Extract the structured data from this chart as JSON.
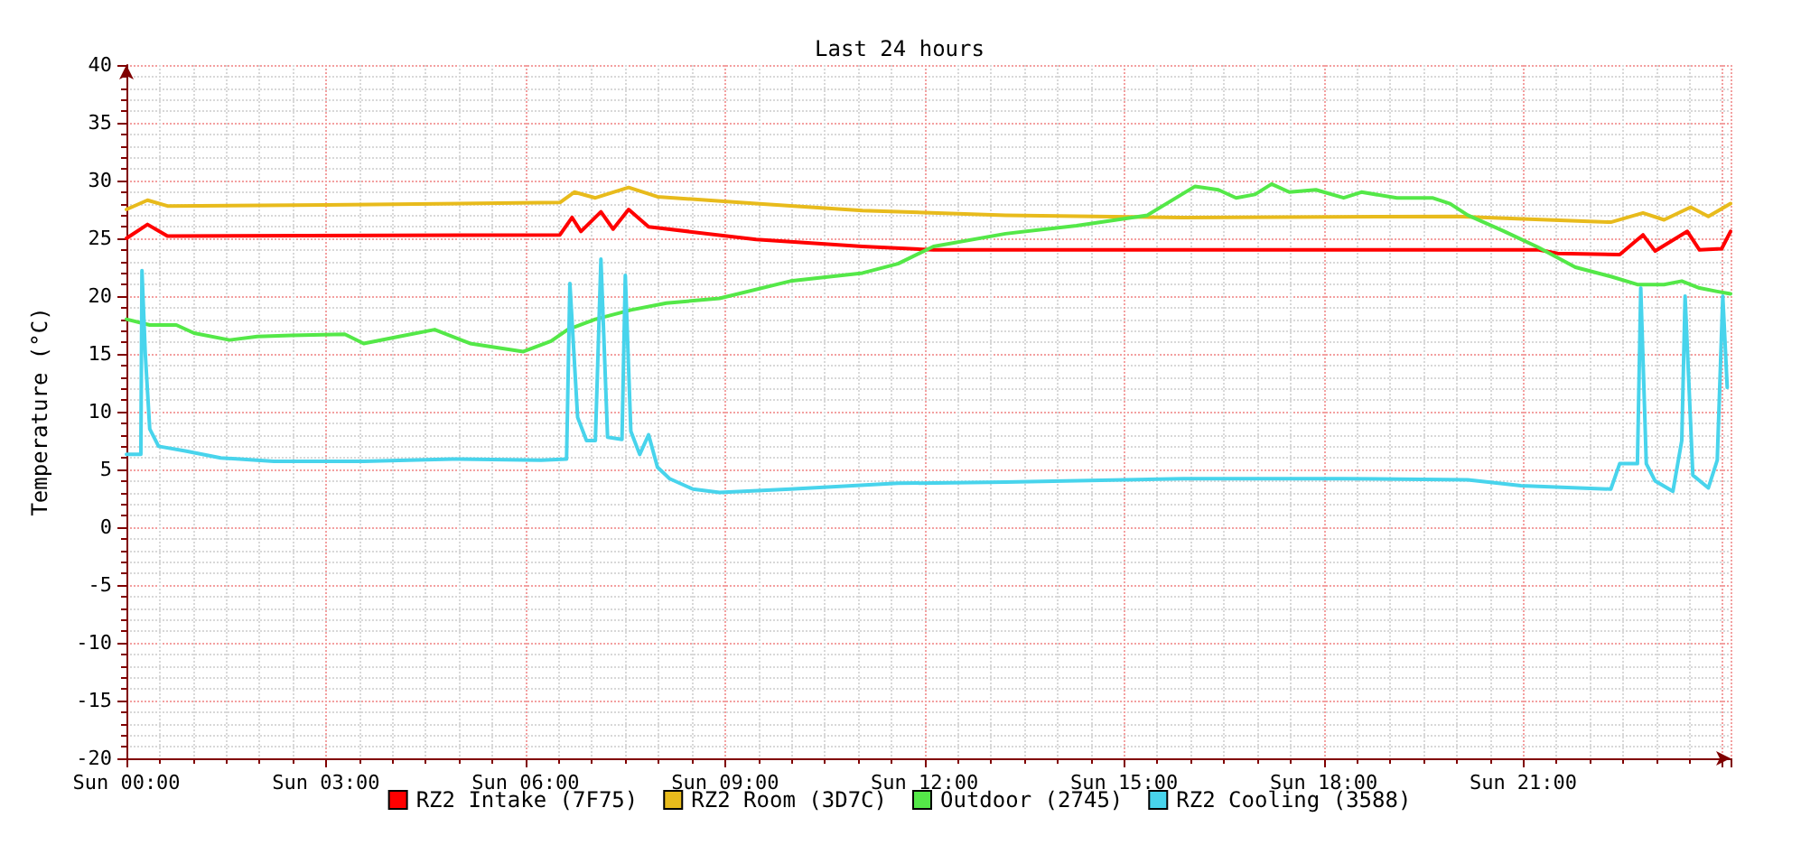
{
  "chart_data": {
    "type": "line",
    "title": "Last 24 hours",
    "ylabel": "Temperature (°C)",
    "xlim": [
      "--01-07T00:00",
      "--01-08T00:07"
    ],
    "xticks": [
      {
        "value": "--01-07T00:00",
        "label": "Sun 00:00"
      },
      {
        "value": "--01-07T03:00",
        "label": "Sun 03:00"
      },
      {
        "value": "--01-07T06:00",
        "label": "Sun 06:00"
      },
      {
        "value": "--01-07T09:00",
        "label": "Sun 09:00"
      },
      {
        "value": "--01-07T12:00",
        "label": "Sun 12:00"
      },
      {
        "value": "--01-07T15:00",
        "label": "Sun 15:00"
      },
      {
        "value": "--01-07T18:00",
        "label": "Sun 18:00"
      },
      {
        "value": "--01-07T21:00",
        "label": "Sun 21:00"
      }
    ],
    "ylim": [
      -20,
      40
    ],
    "yticks": [
      -20,
      -15,
      -10,
      -5,
      0,
      5,
      10,
      15,
      20,
      25,
      30,
      35,
      40
    ],
    "grid": true,
    "legend": "bottom",
    "marker": "none",
    "line_style": "solid",
    "series": [
      {
        "name": "RZ2 Intake (7F75)",
        "color": "#ff0000",
        "x": [
          "--01-07T00:00",
          "--01-07T00:19",
          "--01-07T00:37",
          "--01-07T06:31",
          "--01-07T06:42",
          "--01-07T06:50",
          "--01-07T07:08",
          "--01-07T07:19",
          "--01-07T07:33",
          "--01-07T07:51",
          "--01-07T09:28",
          "--01-07T11:04",
          "--01-07T12:08",
          "--01-07T15:53",
          "--01-07T21:14",
          "--01-07T21:31",
          "--01-07T22:27",
          "--01-07T22:48",
          "--01-07T22:59",
          "--01-07T23:28",
          "--01-07T23:39",
          "--01-07T23:59",
          "--01-08T00:07"
        ],
        "values": [
          25,
          26.2,
          25.2,
          25.3,
          26.8,
          25.6,
          27.3,
          25.8,
          27.5,
          26,
          24.9,
          24.3,
          24,
          24,
          24,
          23.7,
          23.6,
          25.3,
          23.9,
          25.6,
          24,
          24.1,
          25.6
        ]
      },
      {
        "name": "RZ2 Room (3D7C)",
        "color": "#e8bb1c",
        "x": [
          "--01-07T00:00",
          "--01-07T00:19",
          "--01-07T00:37",
          "--01-07T03:00",
          "--01-07T06:31",
          "--01-07T06:44",
          "--01-07T07:03",
          "--01-07T07:33",
          "--01-07T07:59",
          "--01-07T09:28",
          "--01-07T11:04",
          "--01-07T13:13",
          "--01-07T15:53",
          "--01-07T20:00",
          "--01-07T22:19",
          "--01-07T22:48",
          "--01-07T23:07",
          "--01-07T23:31",
          "--01-07T23:47",
          "--01-08T00:07"
        ],
        "values": [
          27.5,
          28.3,
          27.8,
          27.9,
          28.1,
          29,
          28.5,
          29.4,
          28.6,
          28,
          27.4,
          27,
          26.8,
          26.9,
          26.4,
          27.2,
          26.6,
          27.7,
          26.9,
          28
        ]
      },
      {
        "name": "Outdoor (2745)",
        "color": "#54e848",
        "x": [
          "--01-07T00:00",
          "--01-07T00:21",
          "--01-07T00:45",
          "--01-07T01:01",
          "--01-07T01:33",
          "--01-07T01:58",
          "--01-07T02:29",
          "--01-07T03:17",
          "--01-07T03:34",
          "--01-07T04:06",
          "--01-07T04:38",
          "--01-07T05:10",
          "--01-07T05:58",
          "--01-07T06:23",
          "--01-07T06:38",
          "--01-07T07:03",
          "--01-07T07:35",
          "--01-07T08:07",
          "--01-07T08:55",
          "--01-07T09:59",
          "--01-07T11:04",
          "--01-07T11:36",
          "--01-07T12:08",
          "--01-07T13:13",
          "--01-07T14:17",
          "--01-07T15:21",
          "--01-07T16:04",
          "--01-07T16:25",
          "--01-07T16:41",
          "--01-07T16:58",
          "--01-07T17:13",
          "--01-07T17:29",
          "--01-07T17:53",
          "--01-07T18:18",
          "--01-07T18:34",
          "--01-07T19:06",
          "--01-07T19:38",
          "--01-07T19:54",
          "--01-07T20:10",
          "--01-07T20:43",
          "--01-07T21:14",
          "--01-07T21:47",
          "--01-07T22:19",
          "--01-07T22:43",
          "--01-07T23:07",
          "--01-07T23:23",
          "--01-07T23:39",
          "--01-07T23:55",
          "--01-08T00:07"
        ],
        "values": [
          18,
          17.5,
          17.5,
          16.8,
          16.2,
          16.5,
          16.6,
          16.7,
          15.9,
          16.5,
          17.1,
          15.9,
          15.2,
          16.1,
          17.1,
          18,
          18.8,
          19.4,
          19.8,
          21.3,
          22,
          22.8,
          24.3,
          25.4,
          26.1,
          27,
          29.5,
          29.2,
          28.5,
          28.8,
          29.7,
          29,
          29.2,
          28.5,
          29,
          28.5,
          28.5,
          28,
          27,
          25.6,
          24.2,
          22.5,
          21.7,
          21,
          21,
          21.3,
          20.7,
          20.4,
          20.2
        ]
      },
      {
        "name": "RZ2 Cooling (3588)",
        "color": "#48d4ec",
        "x": [
          "--01-07T00:00",
          "--01-07T00:13",
          "--01-07T00:14",
          "--01-07T00:17",
          "--01-07T00:21",
          "--01-07T00:29",
          "--01-07T00:53",
          "--01-07T01:25",
          "--01-07T02:13",
          "--01-07T03:34",
          "--01-07T04:54",
          "--01-07T06:14",
          "--01-07T06:37",
          "--01-07T06:40",
          "--01-07T06:47",
          "--01-07T06:55",
          "--01-07T07:03",
          "--01-07T07:08",
          "--01-07T07:14",
          "--01-07T07:27",
          "--01-07T07:30",
          "--01-07T07:35",
          "--01-07T07:43",
          "--01-07T07:51",
          "--01-07T07:59",
          "--01-07T08:10",
          "--01-07T08:31",
          "--01-07T08:55",
          "--01-07T09:59",
          "--01-07T11:36",
          "--01-07T13:13",
          "--01-07T15:53",
          "--01-07T18:18",
          "--01-07T20:10",
          "--01-07T20:58",
          "--01-07T22:19",
          "--01-07T22:27",
          "--01-07T22:43",
          "--01-07T22:46",
          "--01-07T22:51",
          "--01-07T22:59",
          "--01-07T23:15",
          "--01-07T23:23",
          "--01-07T23:26",
          "--01-07T23:33",
          "--01-07T23:47",
          "--01-07T23:55",
          "--01-08T00:00",
          "--01-08T00:04"
        ],
        "values": [
          6.3,
          6.3,
          22.2,
          15,
          8.5,
          7,
          6.6,
          6,
          5.7,
          5.7,
          5.9,
          5.8,
          5.9,
          21.1,
          9.5,
          7.5,
          7.5,
          23.2,
          7.8,
          7.6,
          21.8,
          8.3,
          6.3,
          8,
          5.2,
          4.2,
          3.3,
          3,
          3.3,
          3.8,
          3.9,
          4.2,
          4.2,
          4.1,
          3.6,
          3.3,
          5.5,
          5.5,
          20.7,
          5.5,
          4,
          3.1,
          7.5,
          20,
          4.5,
          3.4,
          5.8,
          20,
          12.1
        ]
      }
    ]
  }
}
